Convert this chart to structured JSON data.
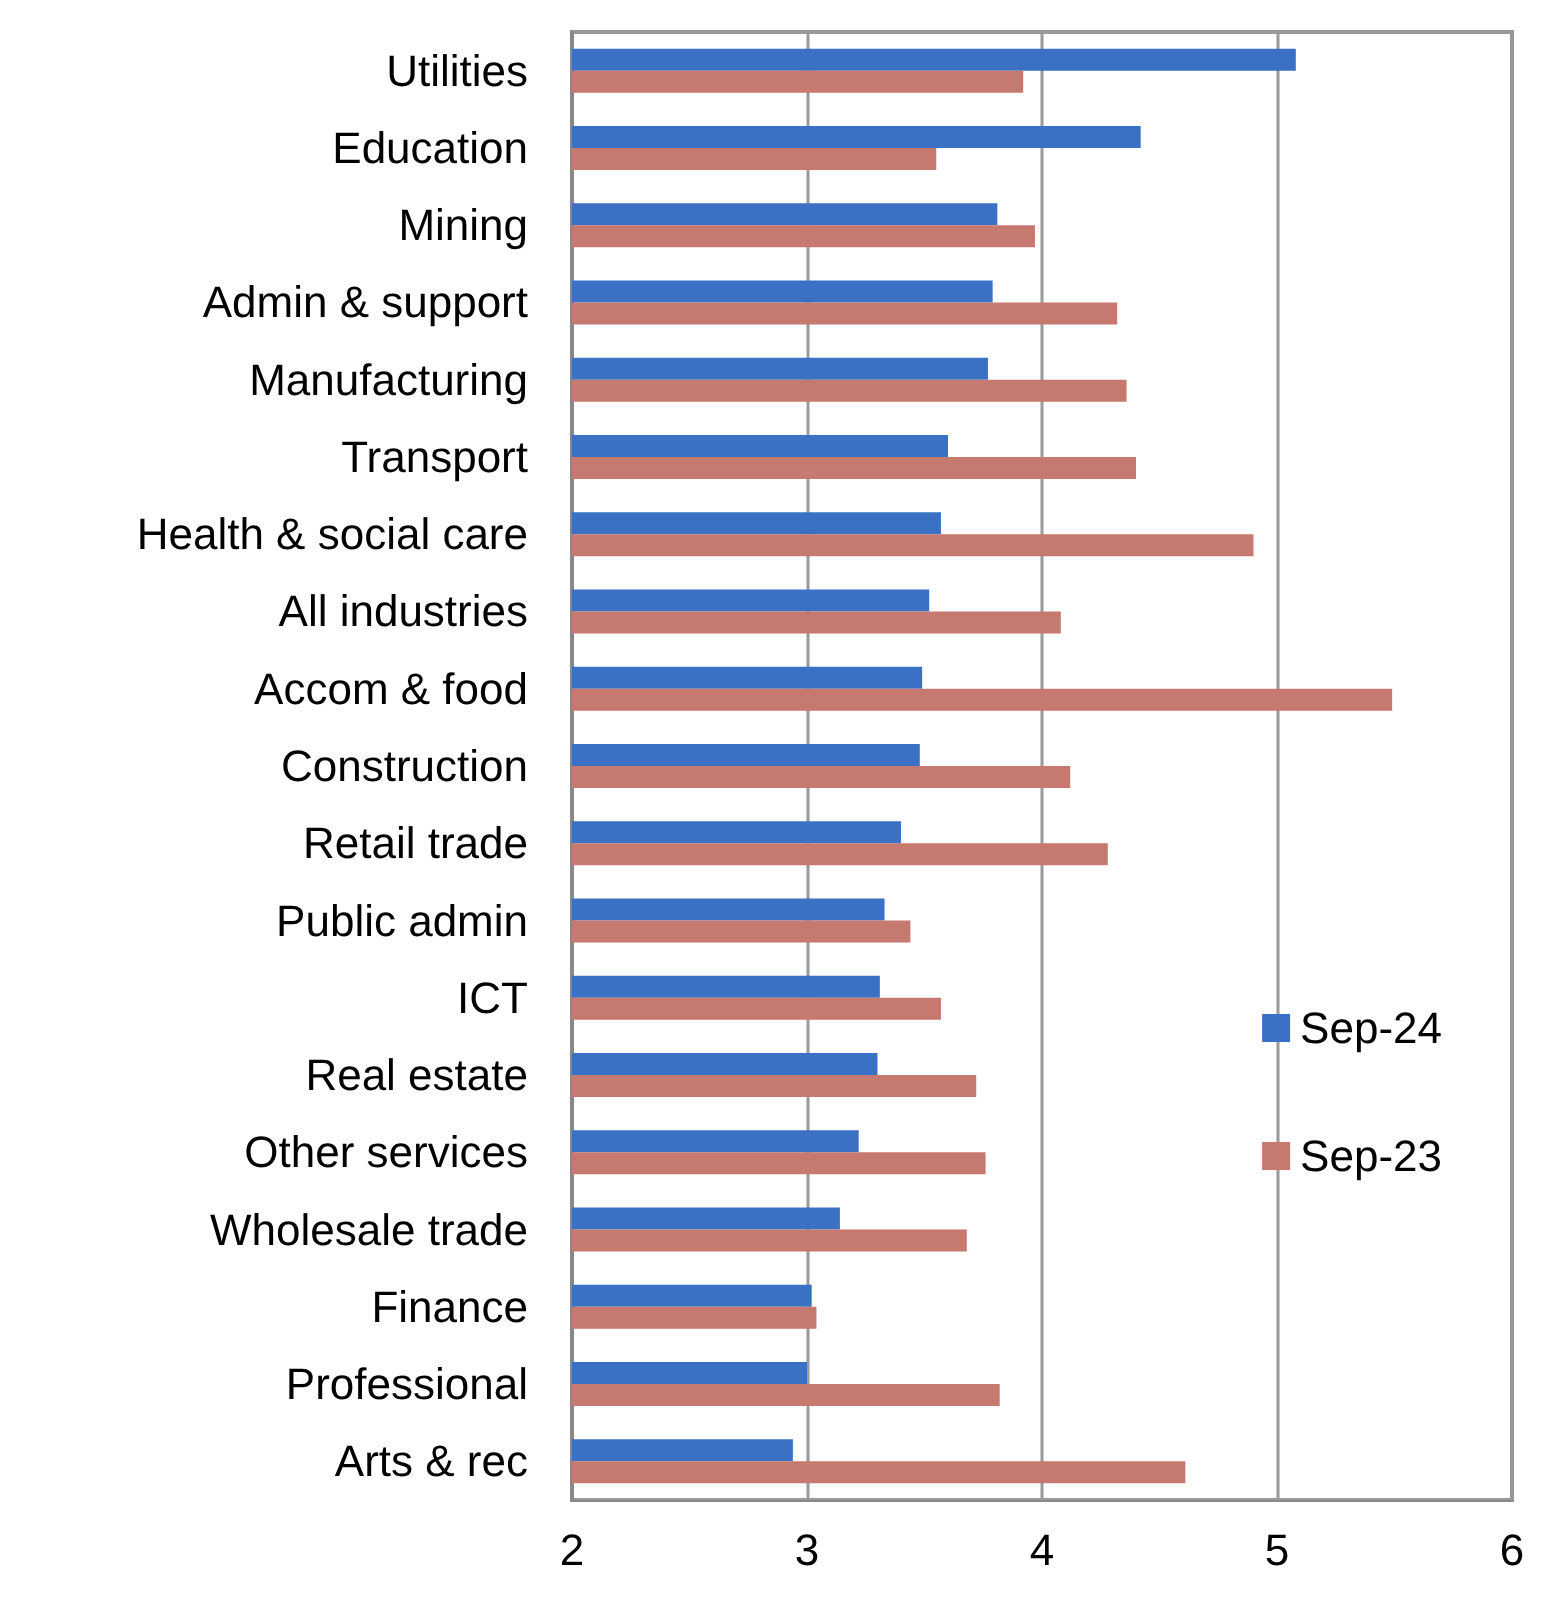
{
  "chart_data": {
    "type": "bar",
    "orientation": "horizontal",
    "categories": [
      "Utilities",
      "Education",
      "Mining",
      "Admin & support",
      "Manufacturing",
      "Transport",
      "Health & social care",
      "All industries",
      "Accom & food",
      "Construction",
      "Retail trade",
      "Public admin",
      "ICT",
      "Real estate",
      "Other services",
      "Wholesale trade",
      "Finance",
      "Professional",
      "Arts & rec"
    ],
    "series": [
      {
        "name": "Sep-24",
        "color": "#3a71c4",
        "values": [
          5.08,
          4.42,
          3.81,
          3.79,
          3.77,
          3.6,
          3.57,
          3.52,
          3.49,
          3.48,
          3.4,
          3.33,
          3.31,
          3.3,
          3.22,
          3.14,
          3.02,
          3.0,
          2.94
        ]
      },
      {
        "name": "Sep-23",
        "color": "#c6796e",
        "values": [
          3.92,
          3.55,
          3.97,
          4.32,
          4.36,
          4.4,
          4.9,
          4.08,
          5.49,
          4.12,
          4.28,
          3.44,
          3.57,
          3.72,
          3.76,
          3.68,
          3.04,
          3.82,
          4.61
        ]
      }
    ],
    "xlim": [
      2,
      6
    ],
    "xticks": [
      2,
      3,
      4,
      5,
      6
    ],
    "grid": "x",
    "legend": "right"
  }
}
